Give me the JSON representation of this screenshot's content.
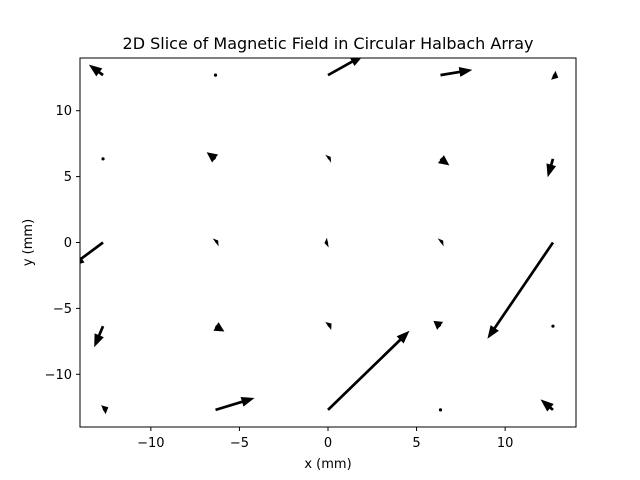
{
  "chart_data": {
    "type": "quiver",
    "title": "2D Slice of Magnetic Field in Circular Halbach Array",
    "xlabel": "x (mm)",
    "ylabel": "y (mm)",
    "xlim": [
      -14,
      14
    ],
    "ylim": [
      -14,
      14
    ],
    "xticks": [
      -10,
      -5,
      0,
      5,
      10
    ],
    "yticks": [
      -10,
      -5,
      0,
      5,
      10
    ],
    "xtick_labels": [
      "−10",
      "−5",
      "0",
      "5",
      "10"
    ],
    "ytick_labels": [
      "−10",
      "−5",
      "0",
      "5",
      "10"
    ],
    "grid": false,
    "vectors": [
      {
        "x": -12.7,
        "y": -12.7,
        "u": 0.3,
        "v": 0.2
      },
      {
        "x": -6.35,
        "y": -12.7,
        "u": 2.2,
        "v": 0.9
      },
      {
        "x": 0,
        "y": -12.7,
        "u": 4.6,
        "v": 6.0
      },
      {
        "x": 6.35,
        "y": -12.7,
        "u": 0.0,
        "v": 0.0
      },
      {
        "x": 12.7,
        "y": -12.7,
        "u": -0.7,
        "v": 0.8
      },
      {
        "x": -12.7,
        "y": -6.35,
        "u": -0.5,
        "v": -1.6
      },
      {
        "x": -6.35,
        "y": -6.35,
        "u": 0.5,
        "v": -0.4
      },
      {
        "x": 0,
        "y": -6.35,
        "u": 0.2,
        "v": 0.2
      },
      {
        "x": 6.35,
        "y": -6.35,
        "u": -0.4,
        "v": 0.4
      },
      {
        "x": 12.7,
        "y": -6.35,
        "u": 0.0,
        "v": 0.0
      },
      {
        "x": -12.7,
        "y": 0,
        "u": -1.8,
        "v": -1.8
      },
      {
        "x": -6.35,
        "y": 0,
        "u": 0.15,
        "v": 0.15
      },
      {
        "x": 0,
        "y": 0,
        "u": -0.2,
        "v": -0.05
      },
      {
        "x": 6.35,
        "y": 0,
        "u": 0.15,
        "v": 0.15
      },
      {
        "x": 12.7,
        "y": 0,
        "u": -3.7,
        "v": -7.3
      },
      {
        "x": -12.7,
        "y": 6.35,
        "u": 0.0,
        "v": 0.0
      },
      {
        "x": -6.35,
        "y": 6.35,
        "u": -0.5,
        "v": 0.5
      },
      {
        "x": 0,
        "y": 6.35,
        "u": 0.15,
        "v": 0.15
      },
      {
        "x": 6.35,
        "y": 6.35,
        "u": 0.5,
        "v": -0.5
      },
      {
        "x": 12.7,
        "y": 6.35,
        "u": -0.3,
        "v": -1.4
      },
      {
        "x": -12.7,
        "y": 12.7,
        "u": -0.8,
        "v": 0.8
      },
      {
        "x": -6.35,
        "y": 12.7,
        "u": 0.0,
        "v": 0.0
      },
      {
        "x": 0,
        "y": 12.7,
        "u": 2.0,
        "v": 1.5
      },
      {
        "x": 6.35,
        "y": 12.7,
        "u": 1.8,
        "v": 0.4
      },
      {
        "x": 12.7,
        "y": 12.7,
        "u": 0.3,
        "v": -0.2
      }
    ]
  }
}
